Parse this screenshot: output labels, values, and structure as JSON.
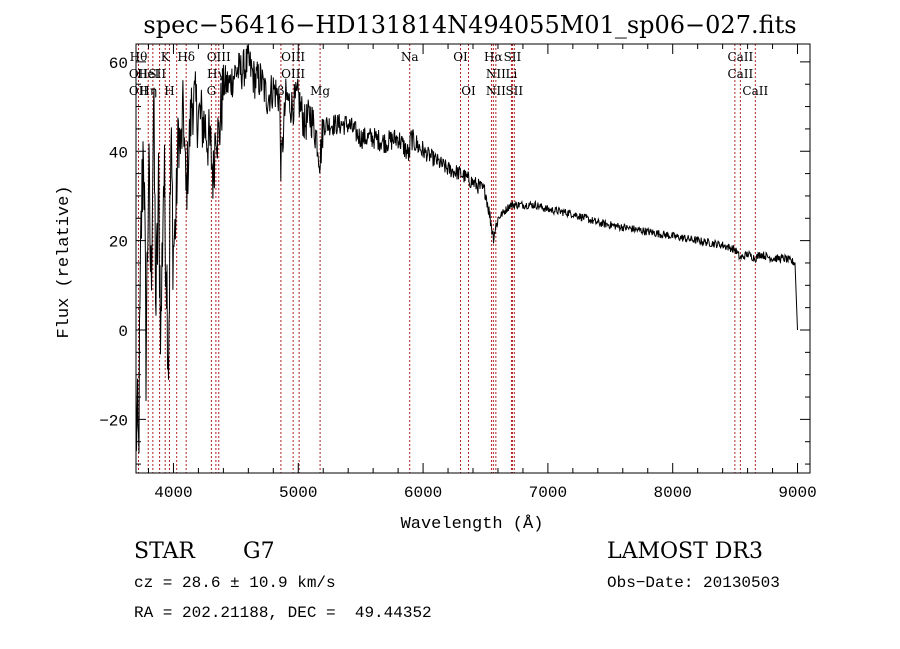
{
  "chart_data": {
    "type": "line",
    "title": "spec−56416−HD131814N494055M01_sp06−027.fits",
    "xlabel": "Wavelength (Å)",
    "ylabel": "Flux (relative)",
    "xlim": [
      3700,
      9100
    ],
    "ylim": [
      -32,
      64
    ],
    "x_ticks": [
      4000,
      5000,
      6000,
      7000,
      8000,
      9000
    ],
    "x_tick_labels": [
      "4000",
      "5000",
      "6000",
      "7000",
      "8000",
      "9000"
    ],
    "y_ticks": [
      -20,
      0,
      20,
      40,
      60
    ],
    "y_tick_labels": [
      "−20",
      "0",
      "20",
      "40",
      "60"
    ],
    "grid": false,
    "series": [
      {
        "x": [
          3700,
          3720,
          3740,
          3760,
          3780,
          3800,
          3820,
          3840,
          3860,
          3880,
          3900,
          3920,
          3940,
          3960,
          3980,
          4000,
          4020,
          4040,
          4060,
          4080,
          4100,
          4150,
          4200,
          4250,
          4300,
          4320,
          4340,
          4360,
          4400,
          4450,
          4500,
          4550,
          4600,
          4650,
          4700,
          4750,
          4800,
          4850,
          4861,
          4900,
          4950,
          5000,
          5050,
          5100,
          5150,
          5175,
          5200,
          5300,
          5400,
          5500,
          5600,
          5700,
          5800,
          5890,
          5900,
          6000,
          6100,
          6200,
          6300,
          6400,
          6500,
          6563,
          6600,
          6700,
          6800,
          6900,
          7000,
          7200,
          7400,
          7600,
          7800,
          8000,
          8200,
          8400,
          8500,
          8542,
          8600,
          8662,
          8700,
          8800,
          8900,
          8980,
          9000
        ],
        "y": [
          -20,
          -28,
          20,
          45,
          -5,
          35,
          10,
          50,
          5,
          30,
          0,
          35,
          20,
          -5,
          40,
          18,
          25,
          45,
          40,
          50,
          30,
          52,
          48,
          46,
          40,
          34,
          48,
          42,
          55,
          55,
          58,
          58,
          60,
          56,
          56,
          52,
          54,
          52,
          36,
          52,
          50,
          52,
          46,
          48,
          43,
          38,
          46,
          46,
          46,
          43,
          43,
          42,
          43,
          39,
          43,
          40,
          38,
          36,
          35,
          33,
          31,
          21,
          25,
          28,
          28,
          28,
          27,
          26,
          24,
          23,
          22,
          21,
          20,
          19,
          18,
          16,
          17,
          16,
          17,
          16,
          16,
          15,
          0
        ]
      }
    ],
    "lines": [
      {
        "x": 3720,
        "upper": "Hθ",
        "lower": "OII"
      },
      {
        "x": 3798,
        "upper": "",
        "lower": "Hη"
      },
      {
        "x": 3835,
        "upper": "",
        "lower": ""
      },
      {
        "x": 3889,
        "upper": "",
        "lower": ""
      },
      {
        "x": 3934,
        "upper": "K",
        "lower": ""
      },
      {
        "x": 3968,
        "upper": "",
        "lower": "H"
      },
      {
        "x": 4026,
        "upper": "",
        "lower": ""
      },
      {
        "x": 4102,
        "upper": "Hδ",
        "lower": ""
      },
      {
        "x": 4304,
        "upper": "",
        "lower": "G"
      },
      {
        "x": 4340,
        "upper": "",
        "lower": ""
      },
      {
        "x": 4363,
        "upper": "OIII",
        "lower": ""
      },
      {
        "x": 4861,
        "upper": "",
        "lower": "β"
      },
      {
        "x": 4959,
        "upper": "OIII",
        "lower": ""
      },
      {
        "x": 5007,
        "upper": "",
        "lower": ""
      },
      {
        "x": 5175,
        "upper": "",
        "lower": "Mg"
      },
      {
        "x": 5893,
        "upper": "Na",
        "lower": ""
      },
      {
        "x": 6300,
        "upper": "OI",
        "lower": ""
      },
      {
        "x": 6364,
        "upper": "",
        "lower": "OI"
      },
      {
        "x": 6548,
        "upper": "",
        "lower": ""
      },
      {
        "x": 6563,
        "upper": "Hα",
        "lower": ""
      },
      {
        "x": 6583,
        "upper": "",
        "lower": "NII"
      },
      {
        "x": 6708,
        "upper": "",
        "lower": ""
      },
      {
        "x": 6716,
        "upper": "SII",
        "lower": ""
      },
      {
        "x": 6731,
        "upper": "",
        "lower": "SII"
      },
      {
        "x": 8498,
        "upper": "",
        "lower": ""
      },
      {
        "x": 8542,
        "upper": "CaII",
        "lower": ""
      },
      {
        "x": 8662,
        "upper": "",
        "lower": "CaII"
      }
    ],
    "line_labels_mid": [
      {
        "x": 3720,
        "text": "OII"
      },
      {
        "x": 3798,
        "text": "HeI"
      },
      {
        "x": 3870,
        "text": "SII"
      },
      {
        "x": 4340,
        "text": "Hγ"
      },
      {
        "x": 4959,
        "text": "OIII"
      },
      {
        "x": 6583,
        "text": "NII"
      },
      {
        "x": 6708,
        "text": "Li"
      },
      {
        "x": 8542,
        "text": "CaII"
      }
    ]
  },
  "info": {
    "object_class": "STAR",
    "subclass": "G7",
    "survey": "LAMOST DR3",
    "cz": "cz = 28.6 ± 10.9 km/s",
    "obs_date": "Obs−Date: 20130503",
    "coords": "RA = 202.21188, DEC =  49.44352"
  }
}
